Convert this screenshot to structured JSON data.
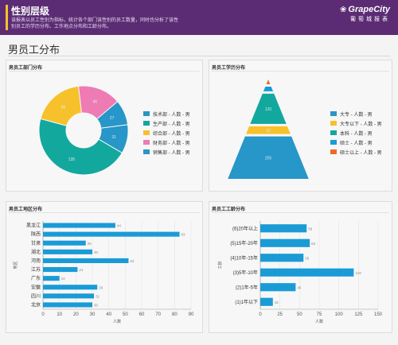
{
  "header": {
    "title": "性别层级",
    "description": "该报表以员工性别为指标，统计各个部门该性别的员工数量，同时也分析了该性别员工的学历分布、工作地点分布和工龄分布。",
    "brand_name": "GrapeCity",
    "brand_sub": "葡萄城报表"
  },
  "page_title": "男员工分布",
  "colors": {
    "banner": "#5b2c73",
    "accent_bar": "#f6c12b",
    "blue": "#2796c8",
    "teal": "#13a89e",
    "yellow": "#f7c12c",
    "pink": "#ee7bb4",
    "orange": "#ee6a2a",
    "barblue": "#1a9bd6"
  },
  "charts": [
    {
      "panel_title": "男员工部门分布",
      "chart_data": {
        "type": "pie",
        "donut": true,
        "legend_position": "right",
        "slices": [
          {
            "label": "技术部 - 人数 - 男",
            "value": 31,
            "color": "#2796c8"
          },
          {
            "label": "生产部 - 人数 - 男",
            "value": 135,
            "color": "#13a89e"
          },
          {
            "label": "综合部 - 人数 - 男",
            "value": 56,
            "color": "#f7c12c"
          },
          {
            "label": "财务部 - 人数 - 男",
            "value": 46,
            "color": "#ee7bb4"
          },
          {
            "label": "销售部 - 人数 - 男",
            "value": 27,
            "color": "#2796c8"
          }
        ]
      }
    },
    {
      "panel_title": "男员工学历分布",
      "chart_data": {
        "type": "pyramid",
        "legend_position": "right",
        "levels": [
          {
            "label": "硕士以上 - 人数 - 男",
            "value": 2,
            "color": "#ee6a2a"
          },
          {
            "label": "硕士 - 人数 - 男",
            "value": 10,
            "color": "#1a9bd6"
          },
          {
            "label": "本科 - 人数 - 男",
            "value": 120,
            "color": "#13a89e"
          },
          {
            "label": "大专以下 - 人数 - 男",
            "value": 30,
            "color": "#f7c12c"
          },
          {
            "label": "大专 - 人数 - 男",
            "value": 205,
            "color": "#2796c8"
          }
        ],
        "legend_order": [
          "大专 - 人数 - 男",
          "大专以下 - 人数 - 男",
          "本科 - 人数 - 男",
          "硕士 - 人数 - 男",
          "硕士以上 - 人数 - 男"
        ]
      }
    },
    {
      "panel_title": "男员工地区分布",
      "chart_data": {
        "type": "bar",
        "orientation": "horizontal",
        "categories": [
          "黑龙江",
          "陕西",
          "甘肃",
          "湖北",
          "河南",
          "江苏",
          "广东",
          "安徽",
          "四川",
          "北京"
        ],
        "values": [
          44,
          83,
          26,
          30,
          52,
          21,
          10,
          33,
          31,
          30
        ],
        "xlabel": "人数",
        "ylabel": "地区",
        "xlim": [
          0,
          90
        ],
        "xticks": [
          0,
          10,
          20,
          30,
          40,
          50,
          60,
          70,
          80,
          90
        ],
        "color": "#1a9bd6"
      }
    },
    {
      "panel_title": "男员工工龄分布",
      "chart_data": {
        "type": "bar",
        "orientation": "horizontal",
        "categories": [
          "(6)20年以上",
          "(5)15年-20年",
          "(4)10年-15年",
          "(3)5年-10年",
          "(2)1年-5年",
          "(1)1年以下"
        ],
        "values": [
          59,
          63,
          55,
          119,
          45,
          16
        ],
        "xlabel": "人数",
        "ylabel": "工龄",
        "xlim": [
          0,
          150
        ],
        "xticks": [
          0,
          25,
          50,
          75,
          100,
          125,
          150
        ],
        "color": "#1a9bd6"
      }
    }
  ]
}
